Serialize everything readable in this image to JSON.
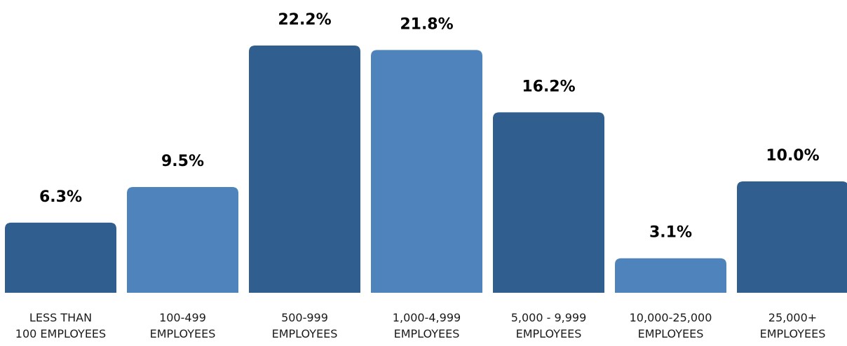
{
  "chart_data": {
    "type": "bar",
    "title": "",
    "xlabel": "",
    "ylabel": "",
    "ylim": [
      0,
      22.2
    ],
    "grid": false,
    "categories": [
      [
        "LESS THAN",
        "100 EMPLOYEES"
      ],
      [
        "100-499",
        "EMPLOYEES"
      ],
      [
        "500-999",
        "EMPLOYEES"
      ],
      [
        "1,000-4,999",
        "EMPLOYEES"
      ],
      [
        "5,000 - 9,999",
        "EMPLOYEES"
      ],
      [
        "10,000-25,000",
        "EMPLOYEES"
      ],
      [
        "25,000+",
        "EMPLOYEES"
      ]
    ],
    "values": [
      6.3,
      9.5,
      22.2,
      21.8,
      16.2,
      3.1,
      10.0
    ],
    "value_labels": [
      "6.3%",
      "9.5%",
      "22.2%",
      "21.8%",
      "16.2%",
      "3.1%",
      "10.0%"
    ],
    "colors": [
      "#305e8e",
      "#4e83bb",
      "#305e8e",
      "#4e83bb",
      "#305e8e",
      "#4e83bb",
      "#305e8e"
    ]
  }
}
